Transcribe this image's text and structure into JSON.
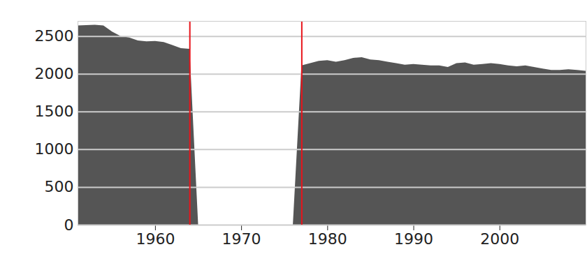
{
  "chart_data": {
    "type": "area",
    "x": [
      1951,
      1952,
      1953,
      1954,
      1955,
      1956,
      1957,
      1958,
      1959,
      1960,
      1961,
      1962,
      1963,
      1964,
      1965,
      1966,
      1967,
      1968,
      1969,
      1970,
      1971,
      1972,
      1973,
      1974,
      1975,
      1976,
      1977,
      1978,
      1979,
      1980,
      1981,
      1982,
      1983,
      1984,
      1985,
      1986,
      1987,
      1988,
      1989,
      1990,
      1991,
      1992,
      1993,
      1994,
      1995,
      1996,
      1997,
      1998,
      1999,
      2000,
      2001,
      2002,
      2003,
      2004,
      2005,
      2006,
      2007,
      2008,
      2009,
      2010
    ],
    "values": [
      2640,
      2645,
      2650,
      2640,
      2560,
      2500,
      2480,
      2440,
      2430,
      2435,
      2420,
      2380,
      2340,
      2330,
      null,
      null,
      null,
      null,
      null,
      null,
      null,
      null,
      null,
      null,
      null,
      null,
      2110,
      2140,
      2170,
      2180,
      2160,
      2180,
      2210,
      2220,
      2190,
      2180,
      2160,
      2140,
      2120,
      2130,
      2120,
      2110,
      2110,
      2090,
      2140,
      2150,
      2120,
      2130,
      2140,
      2130,
      2110,
      2100,
      2110,
      2090,
      2070,
      2050,
      2050,
      2060,
      2050,
      2040
    ],
    "color": "#555555",
    "gap": [
      1964,
      1977
    ],
    "gap_color": "#e8141b",
    "xlim": [
      1951,
      2010
    ],
    "xticks": [
      1960,
      1970,
      1980,
      1990,
      2000
    ],
    "ylim": [
      0,
      2700
    ],
    "yticks": [
      0,
      500,
      1000,
      1500,
      2000,
      2500
    ],
    "grid": true
  }
}
